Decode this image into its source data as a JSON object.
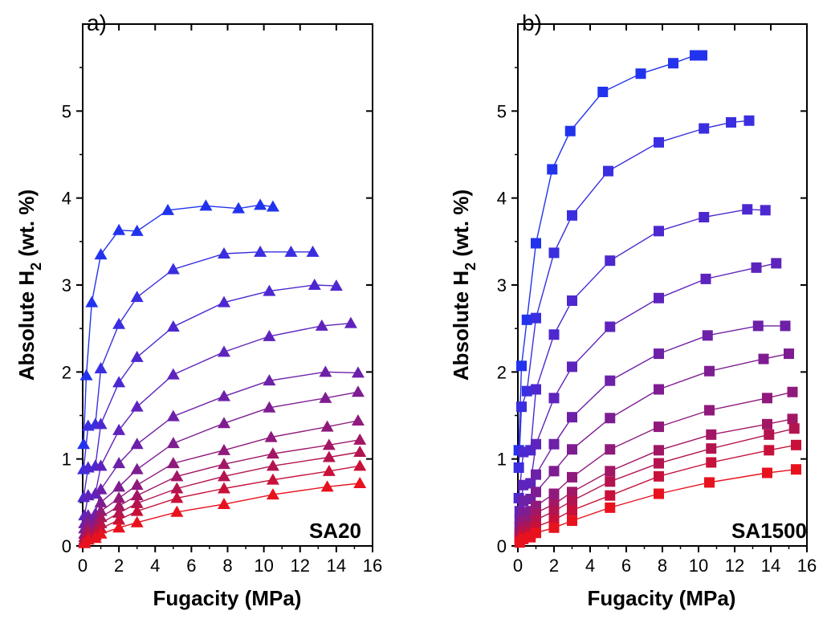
{
  "chart_data": [
    {
      "type": "scatter",
      "panel_label": "a)",
      "sample_label": "SA20",
      "xlabel": "Fugacity (MPa)",
      "ylabel_main": "Absolute H",
      "ylabel_sub": "2",
      "ylabel_tail": " (wt. %)",
      "xlim": [
        0,
        16
      ],
      "ylim": [
        0,
        6
      ],
      "xticks": [
        0,
        2,
        4,
        6,
        8,
        10,
        12,
        14,
        16
      ],
      "yticks": [
        0,
        1,
        2,
        3,
        4,
        5
      ],
      "marker": "triangle",
      "series": [
        {
          "x": [
            0.05,
            0.2,
            0.5,
            1,
            2,
            3,
            4.7,
            6.8,
            8.6,
            9.8,
            10.5
          ],
          "y": [
            1.17,
            1.96,
            2.8,
            3.35,
            3.63,
            3.62,
            3.86,
            3.91,
            3.88,
            3.92,
            3.9
          ],
          "color": "#2233ee"
        },
        {
          "x": [
            0.05,
            0.3,
            0.7,
            1,
            2,
            3,
            5,
            7.8,
            9.8,
            11.5,
            12.7
          ],
          "y": [
            0.88,
            1.38,
            1.4,
            2.04,
            2.55,
            2.86,
            3.18,
            3.36,
            3.38,
            3.38,
            3.38
          ],
          "color": "#3a2ee0"
        },
        {
          "x": [
            0.05,
            0.3,
            0.7,
            1,
            2,
            3,
            5,
            7.8,
            10.3,
            12.8,
            14
          ],
          "y": [
            0.56,
            0.9,
            0.92,
            1.4,
            1.88,
            2.17,
            2.52,
            2.8,
            2.93,
            3.0,
            2.99
          ],
          "color": "#4d28d0"
        },
        {
          "x": [
            0.1,
            0.3,
            0.7,
            1,
            2,
            3,
            5,
            7.8,
            10.3,
            13.2,
            14.8
          ],
          "y": [
            0.35,
            0.58,
            0.6,
            0.92,
            1.33,
            1.6,
            1.97,
            2.23,
            2.41,
            2.53,
            2.56
          ],
          "color": "#5f23bd"
        },
        {
          "x": [
            0.1,
            0.3,
            0.7,
            1,
            2,
            3,
            5,
            7.8,
            10.3,
            13.4,
            15.2
          ],
          "y": [
            0.26,
            0.35,
            0.37,
            0.65,
            0.95,
            1.17,
            1.49,
            1.72,
            1.9,
            2.0,
            1.99
          ],
          "color": "#6d20a8"
        },
        {
          "x": [
            0.1,
            0.3,
            0.7,
            1,
            2,
            3,
            5,
            7.8,
            10.3,
            13.4,
            15.2
          ],
          "y": [
            0.2,
            0.28,
            0.3,
            0.5,
            0.68,
            0.88,
            1.18,
            1.41,
            1.59,
            1.7,
            1.77
          ],
          "color": "#7e1d92"
        },
        {
          "x": [
            0.1,
            0.3,
            0.7,
            1,
            2,
            3,
            5,
            7.8,
            10.4,
            13.5,
            15.2
          ],
          "y": [
            0.14,
            0.22,
            0.24,
            0.4,
            0.55,
            0.7,
            0.95,
            1.1,
            1.25,
            1.37,
            1.44
          ],
          "color": "#8f1a7c"
        },
        {
          "x": [
            0.1,
            0.3,
            0.7,
            1,
            2,
            3,
            5.2,
            7.8,
            10.5,
            13.6,
            15.3
          ],
          "y": [
            0.1,
            0.18,
            0.2,
            0.33,
            0.46,
            0.58,
            0.8,
            0.94,
            1.06,
            1.16,
            1.22
          ],
          "color": "#a11766"
        },
        {
          "x": [
            0.1,
            0.3,
            0.7,
            1,
            2,
            3,
            5.2,
            7.8,
            10.5,
            13.6,
            15.3
          ],
          "y": [
            0.07,
            0.14,
            0.16,
            0.26,
            0.38,
            0.49,
            0.66,
            0.8,
            0.92,
            1.02,
            1.08
          ],
          "color": "#b31450"
        },
        {
          "x": [
            0.1,
            0.3,
            0.7,
            1,
            2,
            3,
            5.2,
            7.8,
            10.5,
            13.6,
            15.3
          ],
          "y": [
            0.05,
            0.1,
            0.12,
            0.2,
            0.3,
            0.4,
            0.55,
            0.66,
            0.76,
            0.86,
            0.92
          ],
          "color": "#c7113a"
        },
        {
          "x": [
            0.1,
            0.3,
            0.7,
            1,
            2,
            3,
            5.2,
            7.8,
            10.5,
            13.5,
            15.3
          ],
          "y": [
            0.03,
            0.07,
            0.09,
            0.14,
            0.21,
            0.27,
            0.39,
            0.48,
            0.59,
            0.68,
            0.72
          ],
          "color": "#e8121e"
        }
      ]
    },
    {
      "type": "scatter",
      "panel_label": "b)",
      "sample_label": "SA1500",
      "xlabel": "Fugacity (MPa)",
      "ylabel_main": "Absolute H",
      "ylabel_sub": "2",
      "ylabel_tail": " (wt. %)",
      "xlim": [
        0,
        16
      ],
      "ylim": [
        0,
        6
      ],
      "xticks": [
        0,
        2,
        4,
        6,
        8,
        10,
        12,
        14,
        16
      ],
      "yticks": [
        0,
        1,
        2,
        3,
        4,
        5
      ],
      "marker": "square",
      "series": [
        {
          "x": [
            0.05,
            0.2,
            0.5,
            1,
            1.9,
            2.9,
            4.7,
            6.8,
            8.6,
            9.8,
            10.2
          ],
          "y": [
            1.1,
            2.07,
            2.6,
            3.48,
            4.33,
            4.77,
            5.22,
            5.43,
            5.55,
            5.64,
            5.64
          ],
          "color": "#2233ee"
        },
        {
          "x": [
            0.05,
            0.2,
            0.5,
            1,
            2,
            3,
            5,
            7.8,
            10.3,
            11.8,
            12.8
          ],
          "y": [
            0.9,
            1.6,
            1.78,
            2.62,
            3.37,
            3.8,
            4.31,
            4.64,
            4.8,
            4.87,
            4.89
          ],
          "color": "#3a2ee0"
        },
        {
          "x": [
            0.05,
            0.3,
            0.7,
            1,
            2,
            3,
            5.1,
            7.8,
            10.3,
            12.7,
            13.7
          ],
          "y": [
            0.55,
            1.08,
            1.1,
            1.8,
            2.43,
            2.82,
            3.28,
            3.62,
            3.78,
            3.87,
            3.86
          ],
          "color": "#4d28d0"
        },
        {
          "x": [
            0.1,
            0.3,
            0.7,
            1,
            2,
            3,
            5.1,
            7.8,
            10.4,
            13.2,
            14.3
          ],
          "y": [
            0.4,
            0.7,
            0.72,
            1.17,
            1.7,
            2.06,
            2.52,
            2.85,
            3.07,
            3.2,
            3.25
          ],
          "color": "#5f23bd"
        },
        {
          "x": [
            0.1,
            0.3,
            0.7,
            1,
            2,
            3,
            5.1,
            7.8,
            10.5,
            13.3,
            14.8
          ],
          "y": [
            0.3,
            0.52,
            0.54,
            0.82,
            1.17,
            1.48,
            1.9,
            2.21,
            2.42,
            2.53,
            2.53
          ],
          "color": "#6d20a8"
        },
        {
          "x": [
            0.1,
            0.3,
            0.7,
            1,
            2,
            3,
            5.1,
            7.8,
            10.6,
            13.6,
            15.0
          ],
          "y": [
            0.22,
            0.38,
            0.4,
            0.62,
            0.86,
            1.11,
            1.47,
            1.8,
            2.01,
            2.15,
            2.21
          ],
          "color": "#7e1d92"
        },
        {
          "x": [
            0.1,
            0.3,
            0.7,
            1,
            2,
            3,
            5.1,
            7.8,
            10.6,
            13.8,
            15.2
          ],
          "y": [
            0.16,
            0.28,
            0.3,
            0.46,
            0.6,
            0.79,
            1.11,
            1.37,
            1.56,
            1.7,
            1.77
          ],
          "color": "#8f1a7c"
        },
        {
          "x": [
            0.1,
            0.3,
            0.7,
            1,
            2,
            3,
            5.1,
            7.8,
            10.7,
            13.8,
            15.2
          ],
          "y": [
            0.12,
            0.22,
            0.24,
            0.38,
            0.48,
            0.62,
            0.86,
            1.1,
            1.28,
            1.4,
            1.46
          ],
          "color": "#a11766"
        },
        {
          "x": [
            0.1,
            0.3,
            0.7,
            1,
            2,
            3,
            5.1,
            7.8,
            10.7,
            13.9,
            15.3
          ],
          "y": [
            0.09,
            0.17,
            0.19,
            0.3,
            0.4,
            0.52,
            0.74,
            0.95,
            1.12,
            1.28,
            1.35
          ],
          "color": "#b31450"
        },
        {
          "x": [
            0.1,
            0.3,
            0.7,
            1,
            2,
            3,
            5.1,
            7.8,
            10.7,
            13.9,
            15.4
          ],
          "y": [
            0.06,
            0.12,
            0.14,
            0.22,
            0.3,
            0.41,
            0.58,
            0.8,
            0.96,
            1.1,
            1.16
          ],
          "color": "#c7113a"
        },
        {
          "x": [
            0.1,
            0.3,
            0.7,
            1,
            2,
            3,
            5.1,
            7.8,
            10.6,
            13.8,
            15.4
          ],
          "y": [
            0.04,
            0.08,
            0.1,
            0.15,
            0.21,
            0.29,
            0.44,
            0.6,
            0.73,
            0.84,
            0.88
          ],
          "color": "#e8121e"
        }
      ]
    }
  ]
}
